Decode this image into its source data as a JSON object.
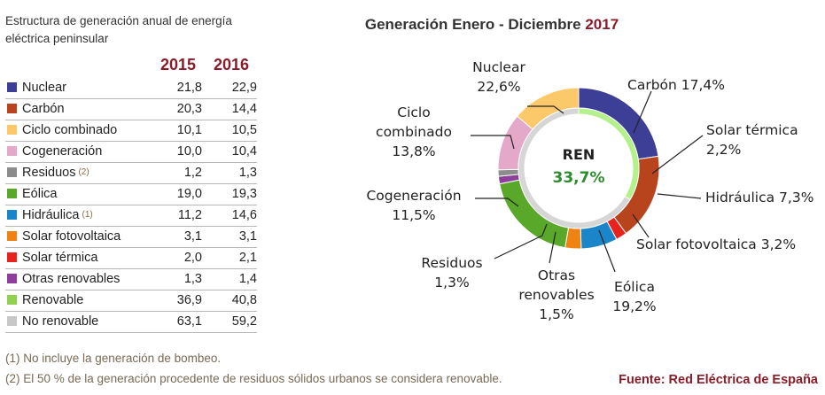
{
  "table": {
    "title_line1": "Estructura de generación anual de energía",
    "title_line2": "eléctrica peninsular",
    "years": [
      "2015",
      "2016"
    ],
    "rows": [
      {
        "label": "Nuclear",
        "note": "",
        "v2015": "21,8",
        "v2016": "22,9",
        "color": "#3d3e96"
      },
      {
        "label": "Carbón",
        "note": "",
        "v2015": "20,3",
        "v2016": "14,4",
        "color": "#b8441e"
      },
      {
        "label": "Ciclo combinado",
        "note": "",
        "v2015": "10,1",
        "v2016": "10,5",
        "color": "#fcc96a"
      },
      {
        "label": "Cogeneración",
        "note": "",
        "v2015": "10,0",
        "v2016": "10,4",
        "color": "#e4a9c9"
      },
      {
        "label": "Residuos",
        "note": "(2)",
        "v2015": "1,2",
        "v2016": "1,3",
        "color": "#8c8c8c"
      },
      {
        "label": "Eólica",
        "note": "",
        "v2015": "19,0",
        "v2016": "19,3",
        "color": "#5aa82a"
      },
      {
        "label": "Hidráulica",
        "note": "(1)",
        "v2015": "11,2",
        "v2016": "14,6",
        "color": "#1a85c8"
      },
      {
        "label": "Solar fotovoltaica",
        "note": "",
        "v2015": "3,1",
        "v2016": "3,1",
        "color": "#ee8312"
      },
      {
        "label": "Solar térmica",
        "note": "",
        "v2015": "2,0",
        "v2016": "2,1",
        "color": "#e8231e"
      },
      {
        "label": "Otras renovables",
        "note": "",
        "v2015": "1,3",
        "v2016": "1,4",
        "color": "#8e3f9c"
      },
      {
        "label": "Renovable",
        "note": "",
        "v2015": "36,9",
        "v2016": "40,8",
        "color": "#92d050"
      },
      {
        "label": "No renovable",
        "note": "",
        "v2015": "63,1",
        "v2016": "59,2",
        "color": "#c8c8c8"
      }
    ]
  },
  "notes": {
    "note1": "(1) No incluye la generación de bombeo.",
    "note2": "(2) El 50 % de la generación procedente de residuos sólidos urbanos se considera renovable."
  },
  "source": "Fuente: Red Eléctrica de España",
  "chart_data": {
    "type": "pie",
    "subtype": "double donut",
    "title": "Generación Enero - Diciembre",
    "title_year": "2017",
    "center_label": "REN",
    "center_value": "33,7%",
    "outer_series": [
      {
        "name": "Nuclear",
        "value": 22.6,
        "color": "#3d3e96",
        "label_lines": [
          "Nuclear",
          "22,6%"
        ]
      },
      {
        "name": "Carbón",
        "value": 17.4,
        "color": "#b8441e",
        "label_lines": [
          "Carbón 17,4%"
        ]
      },
      {
        "name": "Solar térmica",
        "value": 2.2,
        "color": "#e8231e",
        "label_lines": [
          "Solar térmica",
          "2,2%"
        ]
      },
      {
        "name": "Hidráulica",
        "value": 7.3,
        "color": "#1a85c8",
        "label_lines": [
          "Hidráulica 7,3%"
        ]
      },
      {
        "name": "Solar fotovoltaica",
        "value": 3.2,
        "color": "#ee8312",
        "label_lines": [
          "Solar fotovoltaica 3,2%"
        ]
      },
      {
        "name": "Eólica",
        "value": 19.2,
        "color": "#5aa82a",
        "label_lines": [
          "Eólica",
          "19,2%"
        ]
      },
      {
        "name": "Otras renovables",
        "value": 1.5,
        "color": "#8e3f9c",
        "label_lines": [
          "Otras",
          "renovables",
          "1,5%"
        ]
      },
      {
        "name": "Residuos",
        "value": 1.3,
        "color": "#8c8c8c",
        "label_lines": [
          "Residuos",
          "1,3%"
        ]
      },
      {
        "name": "Cogeneración",
        "value": 11.5,
        "color": "#e4a9c9",
        "label_lines": [
          "Cogeneración",
          "11,5%"
        ]
      },
      {
        "name": "Ciclo combinado",
        "value": 13.8,
        "color": "#fcc96a",
        "label_lines": [
          "Ciclo",
          "combinado",
          "13,8%"
        ]
      }
    ],
    "inner_series": [
      {
        "name": "Renovable",
        "value": 33.7,
        "color": "#b4f08c"
      },
      {
        "name": "No renovable",
        "value": 66.3,
        "color": "#d6d6d6"
      }
    ]
  }
}
